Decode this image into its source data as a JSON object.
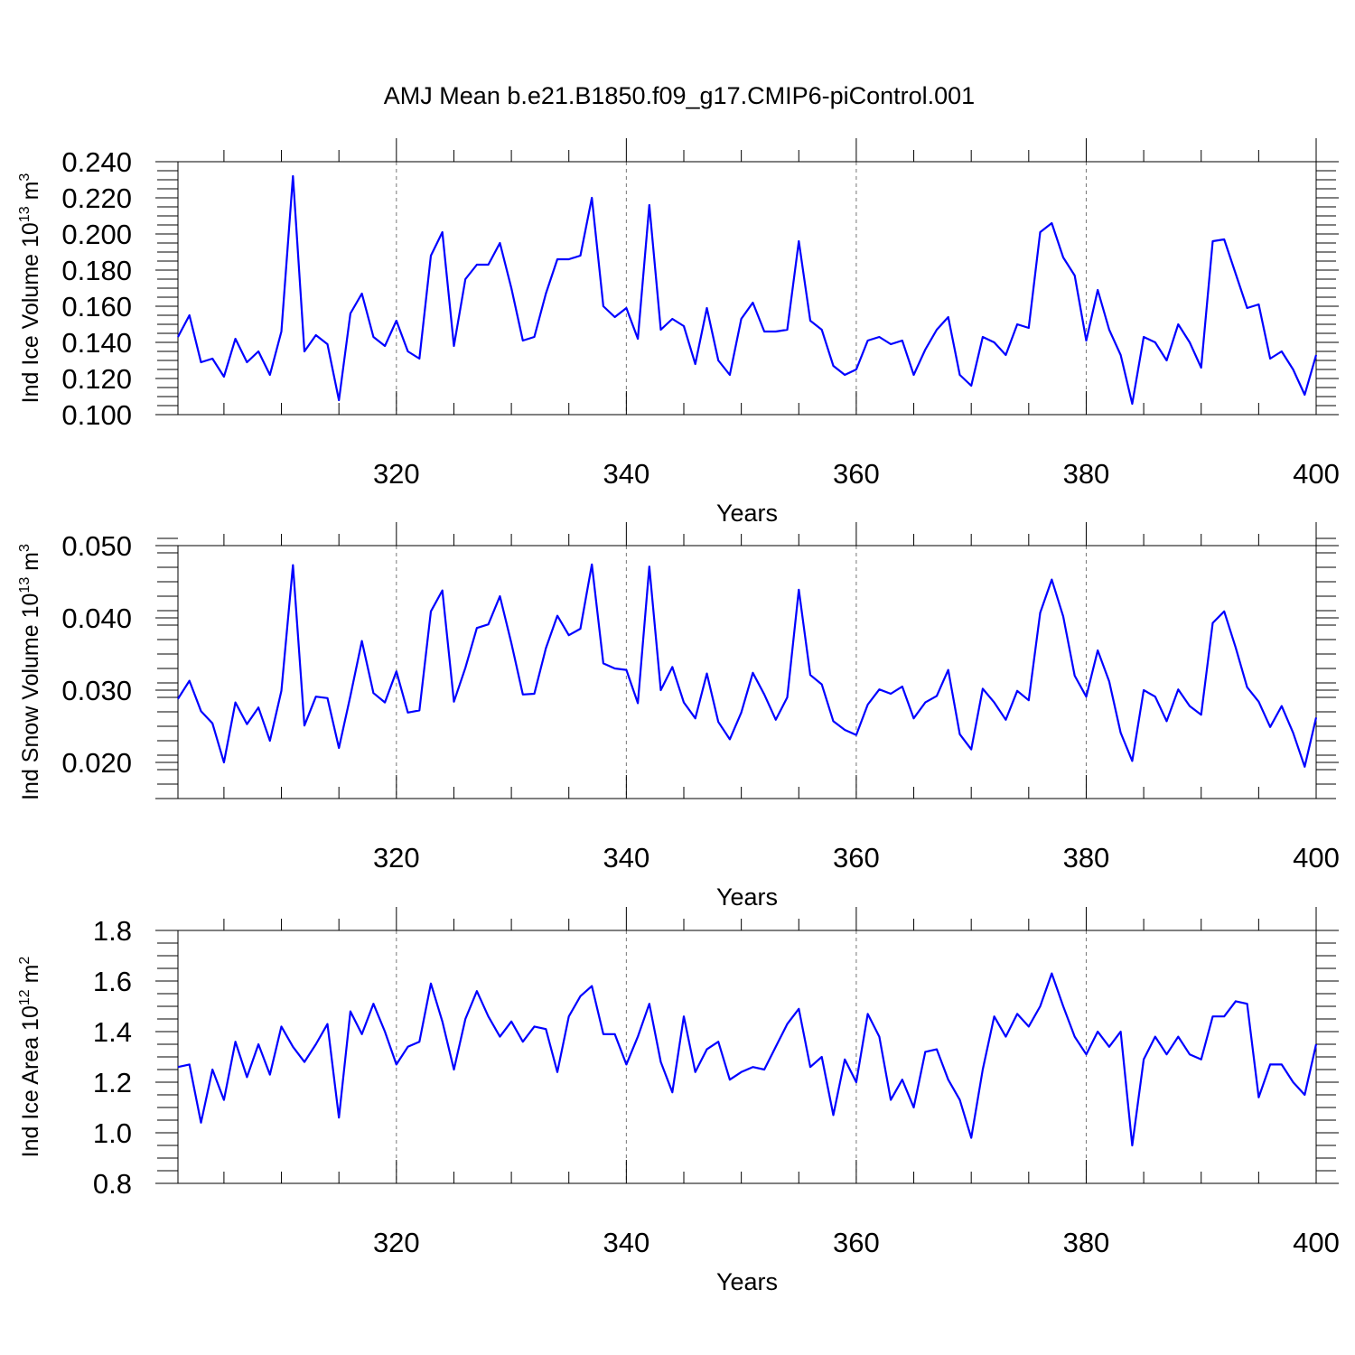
{
  "title": "AMJ Mean b.e21.B1850.f09_g17.CMIP6-piControl.001",
  "colors": {
    "series": "#0000ff",
    "axis": "#000000",
    "grid": "#777777"
  },
  "chart_data": [
    {
      "type": "line",
      "name": "ice-volume",
      "ylabel": "Ind Ice Volume 10",
      "ylabel_exp": "13",
      "ylabel_unit": " m",
      "ylabel_unit_exp": "3",
      "xlabel": "Years",
      "xlim": [
        301,
        400
      ],
      "ylim": [
        0.1,
        0.24
      ],
      "x_ticks": [
        320,
        340,
        360,
        380,
        400
      ],
      "x_tick_labels": [
        "320",
        "340",
        "360",
        "380",
        "400"
      ],
      "y_ticks": [
        0.1,
        0.12,
        0.14,
        0.16,
        0.18,
        0.2,
        0.22,
        0.24
      ],
      "y_tick_labels": [
        "0.100",
        "0.120",
        "0.140",
        "0.160",
        "0.180",
        "0.200",
        "0.220",
        "0.240"
      ],
      "y_minor_step": 0.005,
      "x_start": 301,
      "values": [
        0.143,
        0.155,
        0.129,
        0.131,
        0.121,
        0.142,
        0.129,
        0.135,
        0.122,
        0.146,
        0.232,
        0.135,
        0.144,
        0.139,
        0.108,
        0.156,
        0.167,
        0.143,
        0.138,
        0.152,
        0.135,
        0.131,
        0.188,
        0.201,
        0.138,
        0.175,
        0.183,
        0.183,
        0.195,
        0.17,
        0.141,
        0.143,
        0.167,
        0.186,
        0.186,
        0.188,
        0.22,
        0.16,
        0.154,
        0.159,
        0.142,
        0.216,
        0.147,
        0.153,
        0.149,
        0.128,
        0.159,
        0.13,
        0.122,
        0.153,
        0.162,
        0.146,
        0.146,
        0.147,
        0.196,
        0.152,
        0.147,
        0.127,
        0.122,
        0.125,
        0.141,
        0.143,
        0.139,
        0.141,
        0.122,
        0.136,
        0.147,
        0.154,
        0.122,
        0.116,
        0.143,
        0.14,
        0.133,
        0.15,
        0.148,
        0.201,
        0.206,
        0.187,
        0.177,
        0.141,
        0.169,
        0.147,
        0.133,
        0.106,
        0.143,
        0.14,
        0.13,
        0.15,
        0.14,
        0.126,
        0.196,
        0.197,
        0.178,
        0.159,
        0.161,
        0.131,
        0.135,
        0.125,
        0.111,
        0.133
      ]
    },
    {
      "type": "line",
      "name": "snow-volume",
      "ylabel": "Ind Snow Volume 10",
      "ylabel_exp": "13",
      "ylabel_unit": " m",
      "ylabel_unit_exp": "3",
      "xlabel": "Years",
      "xlim": [
        301,
        400
      ],
      "ylim": [
        0.015,
        0.05
      ],
      "x_ticks": [
        320,
        340,
        360,
        380,
        400
      ],
      "x_tick_labels": [
        "320",
        "340",
        "360",
        "380",
        "400"
      ],
      "y_ticks": [
        0.02,
        0.03,
        0.04,
        0.05
      ],
      "y_tick_labels": [
        "0.020",
        "0.030",
        "0.040",
        "0.050"
      ],
      "y_minor_step": 0.002,
      "x_start": 301,
      "values": [
        0.0288,
        0.0313,
        0.0271,
        0.0254,
        0.02,
        0.0283,
        0.0253,
        0.0276,
        0.023,
        0.0299,
        0.0473,
        0.0251,
        0.0291,
        0.0289,
        0.022,
        0.0292,
        0.0368,
        0.0296,
        0.0283,
        0.0326,
        0.0269,
        0.0272,
        0.0409,
        0.0438,
        0.0284,
        0.0331,
        0.0386,
        0.0391,
        0.043,
        0.0365,
        0.0294,
        0.0295,
        0.0358,
        0.0403,
        0.0376,
        0.0385,
        0.0474,
        0.0337,
        0.033,
        0.0328,
        0.0282,
        0.0471,
        0.03,
        0.0332,
        0.0283,
        0.0261,
        0.0323,
        0.0256,
        0.0232,
        0.0269,
        0.0324,
        0.0294,
        0.0259,
        0.029,
        0.0439,
        0.0321,
        0.0308,
        0.0257,
        0.0245,
        0.0238,
        0.028,
        0.0301,
        0.0295,
        0.0305,
        0.0261,
        0.0283,
        0.0292,
        0.0328,
        0.0239,
        0.0218,
        0.0302,
        0.0283,
        0.0259,
        0.0299,
        0.0286,
        0.0407,
        0.0453,
        0.0402,
        0.032,
        0.0291,
        0.0355,
        0.0312,
        0.0241,
        0.0202,
        0.03,
        0.0291,
        0.0257,
        0.0301,
        0.0278,
        0.0266,
        0.0393,
        0.0409,
        0.0359,
        0.0304,
        0.0284,
        0.0249,
        0.0278,
        0.0241,
        0.0194,
        0.0262
      ]
    },
    {
      "type": "line",
      "name": "ice-area",
      "ylabel": "Ind Ice Area 10",
      "ylabel_exp": "12",
      "ylabel_unit": " m",
      "ylabel_unit_exp": "2",
      "xlabel": "Years",
      "xlim": [
        301,
        400
      ],
      "ylim": [
        0.8,
        1.8
      ],
      "x_ticks": [
        320,
        340,
        360,
        380,
        400
      ],
      "x_tick_labels": [
        "320",
        "340",
        "360",
        "380",
        "400"
      ],
      "y_ticks": [
        0.8,
        1.0,
        1.2,
        1.4,
        1.6,
        1.8
      ],
      "y_tick_labels": [
        "0.8",
        "1.0",
        "1.2",
        "1.4",
        "1.6",
        "1.8"
      ],
      "y_minor_step": 0.05,
      "x_start": 301,
      "values": [
        1.26,
        1.27,
        1.04,
        1.25,
        1.13,
        1.36,
        1.22,
        1.35,
        1.23,
        1.42,
        1.34,
        1.28,
        1.35,
        1.43,
        1.06,
        1.48,
        1.39,
        1.51,
        1.4,
        1.27,
        1.34,
        1.36,
        1.59,
        1.44,
        1.25,
        1.45,
        1.56,
        1.46,
        1.38,
        1.44,
        1.36,
        1.42,
        1.41,
        1.24,
        1.46,
        1.54,
        1.58,
        1.39,
        1.39,
        1.27,
        1.38,
        1.51,
        1.28,
        1.16,
        1.46,
        1.24,
        1.33,
        1.36,
        1.21,
        1.24,
        1.26,
        1.25,
        1.34,
        1.43,
        1.49,
        1.26,
        1.3,
        1.07,
        1.29,
        1.2,
        1.47,
        1.38,
        1.13,
        1.21,
        1.1,
        1.32,
        1.33,
        1.21,
        1.13,
        0.98,
        1.25,
        1.46,
        1.38,
        1.47,
        1.42,
        1.5,
        1.63,
        1.5,
        1.38,
        1.31,
        1.4,
        1.34,
        1.4,
        0.95,
        1.29,
        1.38,
        1.31,
        1.38,
        1.31,
        1.29,
        1.46,
        1.46,
        1.52,
        1.51,
        1.14,
        1.27,
        1.27,
        1.2,
        1.15,
        1.35
      ]
    }
  ]
}
